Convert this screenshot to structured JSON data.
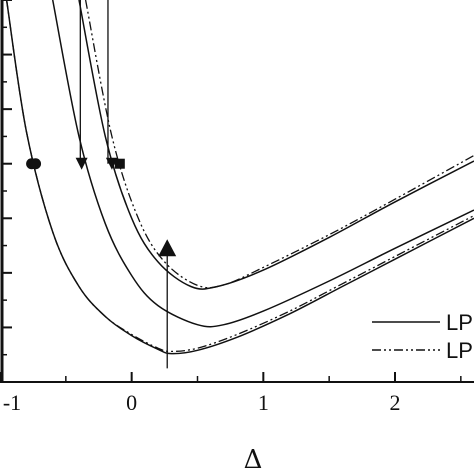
{
  "chart_data": {
    "type": "line",
    "title": "",
    "xlabel": "Δ",
    "ylabel": "",
    "xlim": [
      -1.0,
      2.6
    ],
    "ylim": [
      0,
      7
    ],
    "x_ticks": [
      -1,
      0,
      1,
      2
    ],
    "x_tick_labels": [
      "-1",
      "0",
      "1",
      "2"
    ],
    "grid": false,
    "legend": {
      "placement": "bottom-right",
      "entries": [
        {
          "label": "LP",
          "style": "solid"
        },
        {
          "label": "LP",
          "style": "dash-dot-dot"
        }
      ]
    },
    "series": [
      {
        "style": "solid",
        "points": [
          [
            -0.95,
            7.0
          ],
          [
            -0.8,
            4.6
          ],
          [
            -0.6,
            2.75
          ],
          [
            -0.4,
            1.75
          ],
          [
            -0.2,
            1.2
          ],
          [
            0.0,
            0.85
          ],
          [
            0.2,
            0.6
          ],
          [
            0.3,
            0.52
          ],
          [
            0.5,
            0.58
          ],
          [
            0.8,
            0.82
          ],
          [
            1.2,
            1.25
          ],
          [
            1.6,
            1.75
          ],
          [
            2.0,
            2.25
          ],
          [
            2.6,
            3.0
          ]
        ]
      },
      {
        "style": "dash-dot-dot",
        "points": [
          [
            -0.95,
            7.0
          ],
          [
            -0.8,
            4.6
          ],
          [
            -0.6,
            2.75
          ],
          [
            -0.4,
            1.75
          ],
          [
            -0.2,
            1.2
          ],
          [
            0.0,
            0.87
          ],
          [
            0.2,
            0.62
          ],
          [
            0.3,
            0.56
          ],
          [
            0.5,
            0.62
          ],
          [
            0.8,
            0.87
          ],
          [
            1.2,
            1.3
          ],
          [
            1.6,
            1.8
          ],
          [
            2.0,
            2.3
          ],
          [
            2.6,
            3.05
          ]
        ]
      },
      {
        "style": "solid",
        "points": [
          [
            -0.6,
            7.0
          ],
          [
            -0.4,
            4.5
          ],
          [
            -0.2,
            2.9
          ],
          [
            0.0,
            1.95
          ],
          [
            0.2,
            1.4
          ],
          [
            0.5,
            1.05
          ],
          [
            0.7,
            1.05
          ],
          [
            1.0,
            1.3
          ],
          [
            1.5,
            1.85
          ],
          [
            2.0,
            2.45
          ],
          [
            2.6,
            3.15
          ]
        ]
      },
      {
        "style": "solid",
        "points": [
          [
            -0.4,
            7.0
          ],
          [
            -0.2,
            4.5
          ],
          [
            0.0,
            3.0
          ],
          [
            0.2,
            2.2
          ],
          [
            0.45,
            1.75
          ],
          [
            0.65,
            1.75
          ],
          [
            1.0,
            2.05
          ],
          [
            1.5,
            2.65
          ],
          [
            2.0,
            3.3
          ],
          [
            2.6,
            4.05
          ]
        ]
      },
      {
        "style": "dash-dot-dot",
        "points": [
          [
            -0.35,
            7.0
          ],
          [
            -0.15,
            4.5
          ],
          [
            0.05,
            3.0
          ],
          [
            0.25,
            2.2
          ],
          [
            0.5,
            1.77
          ],
          [
            0.7,
            1.78
          ],
          [
            1.0,
            2.1
          ],
          [
            1.5,
            2.7
          ],
          [
            2.0,
            3.35
          ],
          [
            2.6,
            4.15
          ]
        ]
      }
    ],
    "markers": [
      {
        "shape": "circle",
        "x": -0.76,
        "y": 4.0
      },
      {
        "shape": "circle",
        "x": -0.73,
        "y": 4.0
      },
      {
        "shape": "triangle-down",
        "x": -0.38,
        "y": 4.0
      },
      {
        "shape": "triangle-down",
        "x": -0.15,
        "y": 4.0
      },
      {
        "shape": "square",
        "x": -0.09,
        "y": 4.0
      },
      {
        "shape": "triangle-up",
        "x": 0.27,
        "y": 2.45
      }
    ],
    "arrows": [
      {
        "direction": "down",
        "x": -0.39,
        "y_from": 7.0,
        "y_to": 4.0
      },
      {
        "direction": "down",
        "x": -0.18,
        "y_from": 7.0,
        "y_to": 4.0
      },
      {
        "direction": "up",
        "x": 0.27,
        "y_from": 0.25,
        "y_to": 2.45
      }
    ]
  }
}
